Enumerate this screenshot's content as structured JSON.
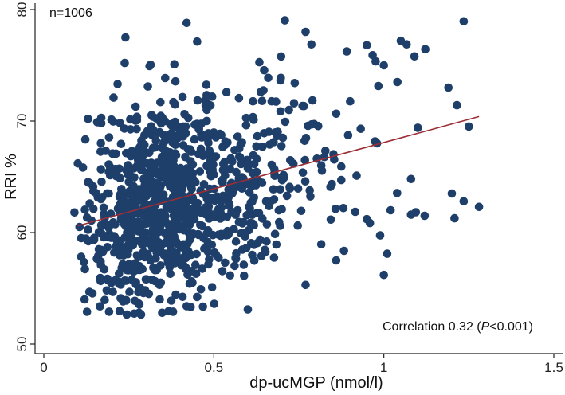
{
  "chart_data": {
    "type": "scatter",
    "title": "",
    "xlabel": "dp-ucMGP (nmol/l)",
    "ylabel": "RRI %",
    "xlim": [
      0,
      1.5
    ],
    "ylim": [
      50,
      80
    ],
    "xticks": [
      0,
      0.5,
      1,
      1.5
    ],
    "xtick_labels": [
      "0",
      "0.5",
      "1",
      "1.5"
    ],
    "yticks": [
      50,
      60,
      70,
      80
    ],
    "ytick_labels": [
      "50",
      "60",
      "70",
      "80"
    ],
    "grid": false,
    "legend": "none",
    "annotations": {
      "n_label": "n=1006",
      "correlation_prefix": "Correlation 0.32 (",
      "correlation_p": "P",
      "correlation_suffix": "<0.001)"
    },
    "marker_color": "#1f3f6b",
    "fit_line_color": "#9b2d35",
    "fit_line": {
      "x": [
        0.1,
        1.28
      ],
      "y": [
        60.6,
        70.4
      ]
    },
    "n_points": 1006,
    "random_seed": 20240611,
    "distribution": {
      "x_lognormal_mu": -0.95,
      "x_lognormal_sigma": 0.45,
      "x_range": [
        0.09,
        1.3
      ],
      "residual_sd": 4.8,
      "y_range": [
        52.5,
        79.2
      ]
    },
    "notable_points": [
      {
        "x": 0.42,
        "y": 78.8
      },
      {
        "x": 0.24,
        "y": 77.5
      },
      {
        "x": 0.77,
        "y": 78.0
      },
      {
        "x": 1.05,
        "y": 77.2
      },
      {
        "x": 0.95,
        "y": 76.8
      },
      {
        "x": 1.09,
        "y": 75.8
      },
      {
        "x": 1.0,
        "y": 75.0
      },
      {
        "x": 1.04,
        "y": 73.5
      },
      {
        "x": 1.19,
        "y": 73.0
      },
      {
        "x": 1.1,
        "y": 69.4
      },
      {
        "x": 1.28,
        "y": 62.3
      },
      {
        "x": 1.2,
        "y": 63.5
      },
      {
        "x": 1.12,
        "y": 61.5
      },
      {
        "x": 1.08,
        "y": 61.6
      },
      {
        "x": 1.01,
        "y": 58.1
      },
      {
        "x": 1.0,
        "y": 56.2
      },
      {
        "x": 1.02,
        "y": 62.0
      },
      {
        "x": 0.98,
        "y": 68.0
      },
      {
        "x": 1.08,
        "y": 64.8
      },
      {
        "x": 0.92,
        "y": 65.1
      },
      {
        "x": 0.95,
        "y": 61.2
      },
      {
        "x": 0.86,
        "y": 57.5
      },
      {
        "x": 0.77,
        "y": 55.3
      },
      {
        "x": 0.6,
        "y": 53.1
      },
      {
        "x": 0.38,
        "y": 52.9
      },
      {
        "x": 0.28,
        "y": 52.8
      },
      {
        "x": 0.12,
        "y": 54.0
      },
      {
        "x": 0.1,
        "y": 66.2
      },
      {
        "x": 0.09,
        "y": 61.8
      },
      {
        "x": 0.11,
        "y": 59.5
      }
    ]
  }
}
